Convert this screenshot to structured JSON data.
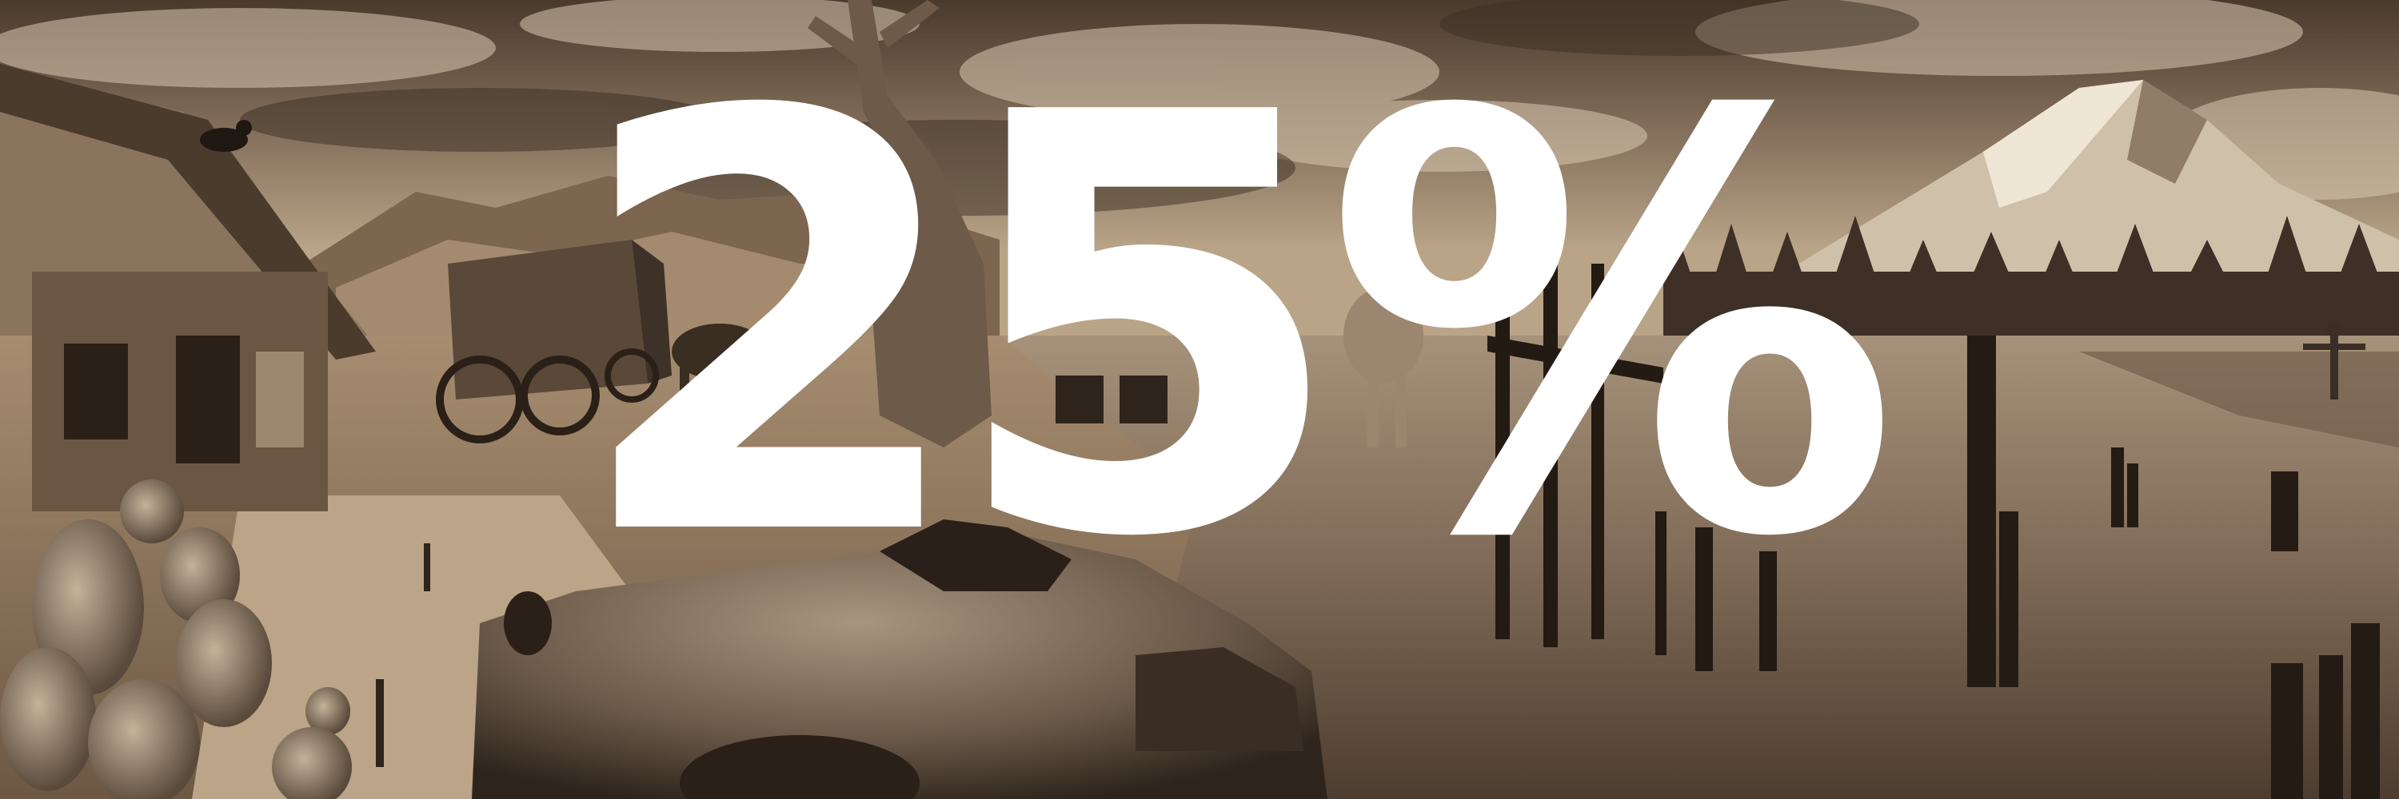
{
  "banner": {
    "headline": "25%",
    "headline_color": "#ffffff",
    "tone": "sepia",
    "scene_elements": [
      "cloudy-sky",
      "wooden-cottage",
      "crow",
      "covered-wagon",
      "horse",
      "desert-badlands",
      "twisted-dead-tree",
      "abandoned-chairs",
      "camel",
      "wooden-dock",
      "snowy-mountain",
      "pine-forest",
      "scarecrow-figure",
      "river",
      "broken-pilings",
      "prickly-pear-cactus",
      "dirt-road",
      "rusted-car-wreck"
    ],
    "colors": {
      "sky": "#8a7560",
      "cloud": "#d9c8b0",
      "ground": "#a68d70",
      "water": "#8f7a64",
      "shadow": "#2b2018"
    }
  }
}
